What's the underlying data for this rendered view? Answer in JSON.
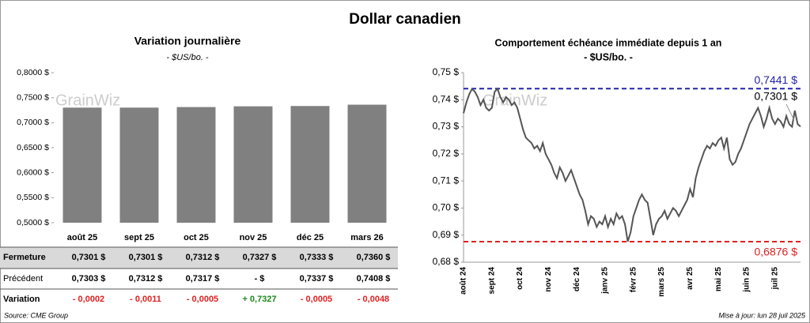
{
  "title": "Dollar canadien",
  "watermark": "GrainWiz",
  "chart_data": [
    {
      "type": "bar",
      "title": "Variation journalière",
      "subtitle": "- $US/bo. -",
      "categories": [
        "août 25",
        "sept 25",
        "oct 25",
        "nov 25",
        "déc 25",
        "mars 26"
      ],
      "values": [
        0.7301,
        0.7301,
        0.7312,
        0.7327,
        0.7333,
        0.736
      ],
      "color": "#808080",
      "ylim": [
        0.5,
        0.8
      ],
      "yticks": [
        {
          "value": 0.5,
          "label": "0,5000 $"
        },
        {
          "value": 0.55,
          "label": "0,5500 $"
        },
        {
          "value": 0.6,
          "label": "0,6000 $"
        },
        {
          "value": 0.65,
          "label": "0,6500 $"
        },
        {
          "value": 0.7,
          "label": "0,7000 $"
        },
        {
          "value": 0.75,
          "label": "0,7500 $"
        },
        {
          "value": 0.8,
          "label": "0,8000 $"
        }
      ]
    },
    {
      "type": "line",
      "title": "Comportement échéance immédiate depuis 1 an",
      "subtitle": "- $US/bo. -",
      "categories": [
        "août 24",
        null,
        null,
        null,
        null,
        null,
        null,
        null,
        null,
        null,
        "sept 24",
        null,
        null,
        null,
        null,
        null,
        null,
        null,
        null,
        null,
        "oct 24",
        null,
        null,
        null,
        null,
        null,
        null,
        null,
        null,
        null,
        "nov 24",
        null,
        null,
        null,
        null,
        null,
        null,
        null,
        null,
        null,
        "déc 24",
        null,
        null,
        null,
        null,
        null,
        null,
        null,
        null,
        null,
        "janv 25",
        null,
        null,
        null,
        null,
        null,
        null,
        null,
        null,
        null,
        "févr 25",
        null,
        null,
        null,
        null,
        null,
        null,
        null,
        null,
        null,
        "mars 25",
        null,
        null,
        null,
        null,
        null,
        null,
        null,
        null,
        null,
        "avr 25",
        null,
        null,
        null,
        null,
        null,
        null,
        null,
        null,
        null,
        "mai 25",
        null,
        null,
        null,
        null,
        null,
        null,
        null,
        null,
        null,
        "juin 25",
        null,
        null,
        null,
        null,
        null,
        null,
        null,
        null,
        null,
        "juil 25",
        null,
        null,
        null,
        null,
        null,
        null,
        null,
        null,
        null
      ],
      "series": [
        {
          "name": "Dollar canadien",
          "color": "#555555",
          "values": [
            0.735,
            0.739,
            0.742,
            0.744,
            0.743,
            0.741,
            0.738,
            0.74,
            0.737,
            0.736,
            0.737,
            0.743,
            0.744,
            0.741,
            0.739,
            0.741,
            0.74,
            0.738,
            0.739,
            0.737,
            0.733,
            0.729,
            0.726,
            0.725,
            0.724,
            0.722,
            0.723,
            0.721,
            0.724,
            0.72,
            0.718,
            0.716,
            0.713,
            0.711,
            0.715,
            0.713,
            0.71,
            0.712,
            0.714,
            0.711,
            0.708,
            0.705,
            0.703,
            0.699,
            0.694,
            0.697,
            0.696,
            0.693,
            0.695,
            0.694,
            0.697,
            0.693,
            0.696,
            0.694,
            0.698,
            0.696,
            0.697,
            0.694,
            0.6876,
            0.691,
            0.697,
            0.7,
            0.703,
            0.705,
            0.703,
            0.702,
            0.696,
            0.69,
            0.694,
            0.696,
            0.697,
            0.699,
            0.696,
            0.698,
            0.7,
            0.699,
            0.697,
            0.699,
            0.701,
            0.703,
            0.707,
            0.704,
            0.711,
            0.715,
            0.718,
            0.721,
            0.723,
            0.722,
            0.724,
            0.723,
            0.725,
            0.726,
            0.722,
            0.726,
            0.718,
            0.716,
            0.717,
            0.72,
            0.722,
            0.725,
            0.728,
            0.731,
            0.733,
            0.735,
            0.737,
            0.734,
            0.73,
            0.733,
            0.737,
            0.733,
            0.731,
            0.733,
            0.732,
            0.73,
            0.734,
            0.731,
            0.73,
            0.736,
            0.731,
            0.7301
          ]
        }
      ],
      "ylim": [
        0.68,
        0.75
      ],
      "yticks": [
        {
          "value": 0.68,
          "label": "0,68 $"
        },
        {
          "value": 0.69,
          "label": "0,69 $"
        },
        {
          "value": 0.7,
          "label": "0,70 $"
        },
        {
          "value": 0.71,
          "label": "0,71 $"
        },
        {
          "value": 0.72,
          "label": "0,72 $"
        },
        {
          "value": 0.73,
          "label": "0,73 $"
        },
        {
          "value": 0.74,
          "label": "0,74 $"
        },
        {
          "value": 0.75,
          "label": "0,75 $"
        }
      ],
      "reference_lines": [
        {
          "value": 0.7441,
          "label": "0,7441 $",
          "color": "#2424a8"
        },
        {
          "value": 0.6876,
          "label": "0,6876 $",
          "color": "#e02020"
        }
      ],
      "annotation": "0,7301 $"
    }
  ],
  "table": {
    "rows": [
      [
        "Fermeture",
        "0,7301 $",
        "0,7301 $",
        "0,7312 $",
        "0,7327 $",
        "0,7333 $",
        "0,7360 $"
      ],
      [
        "Précédent",
        "0,7303 $",
        "0,7312 $",
        "0,7317 $",
        "- $",
        "0,7337 $",
        "0,7408 $"
      ],
      [
        "Variation",
        "- 0,0002",
        "- 0,0011",
        "- 0,0005",
        "+ 0,7327",
        "- 0,0005",
        "- 0,0048"
      ]
    ]
  },
  "footer": {
    "source": "Source: CME Group",
    "updated": "Mise à jour: lun 28 juil 2025"
  }
}
